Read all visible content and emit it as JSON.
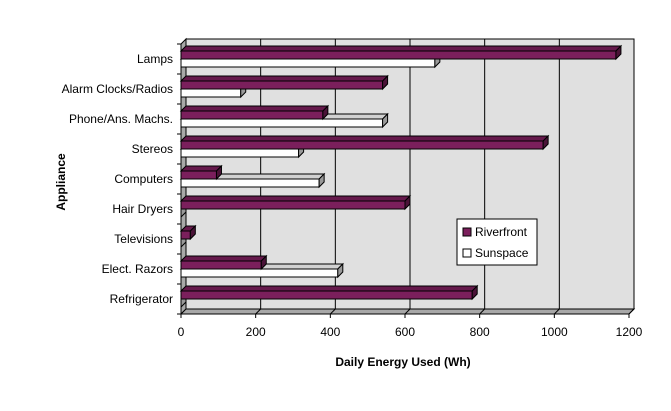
{
  "chart_data": {
    "type": "bar",
    "orientation": "horizontal",
    "style": "3d",
    "categories": [
      "Lamps",
      "Alarm Clocks/Radios",
      "Phone/Ans. Machs.",
      "Stereos",
      "Computers",
      "Hair Dryers",
      "Televisions",
      "Elect. Razors",
      "Refrigerator"
    ],
    "series": [
      {
        "name": "Riverfront",
        "color": "#7b1f5c",
        "values": [
          1165,
          540,
          380,
          970,
          95,
          600,
          25,
          215,
          780
        ]
      },
      {
        "name": "Sunspace",
        "color": "#ffffff",
        "values": [
          680,
          160,
          540,
          315,
          370,
          0,
          0,
          420,
          0
        ]
      }
    ],
    "xlabel": "Daily Energy Used (Wh)",
    "ylabel": "Appliance",
    "xlim": [
      0,
      1200
    ],
    "xticks": [
      0,
      200,
      400,
      600,
      800,
      1000,
      1200
    ],
    "grid": "vertical",
    "plot_background": "#e0e0e0",
    "legend_placement": "right-center"
  }
}
